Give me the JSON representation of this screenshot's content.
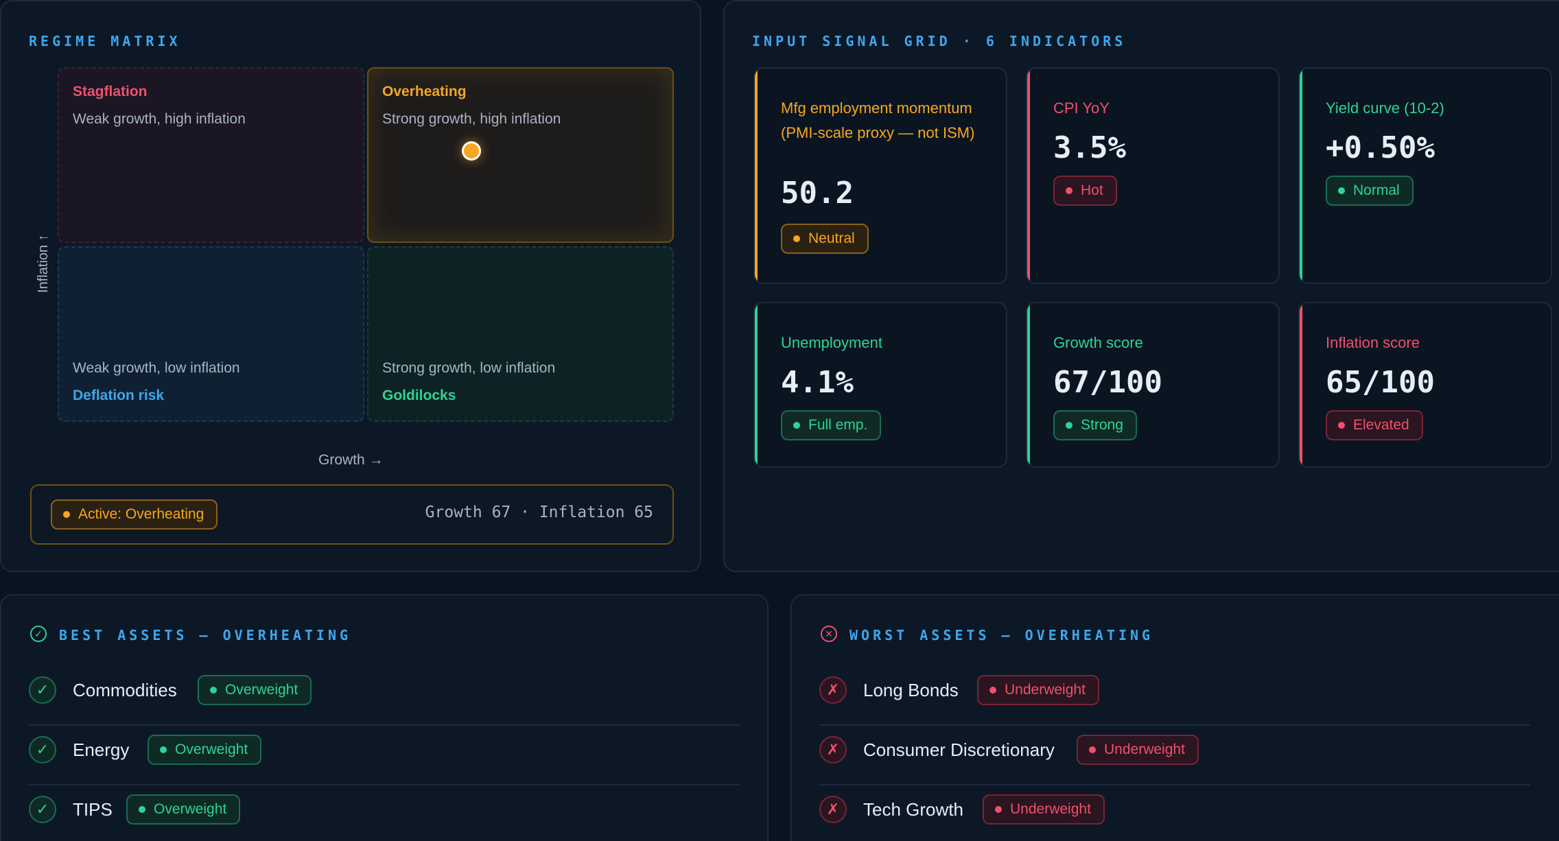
{
  "matrix": {
    "title": "REGIME MATRIX",
    "quadrants": {
      "stagflation": {
        "name": "Stagflation",
        "desc": "Weak growth, high inflation",
        "color": "#f0506e"
      },
      "overheating": {
        "name": "Overheating",
        "desc": "Strong growth, high inflation",
        "color": "#f5a623"
      },
      "deflation": {
        "name": "Deflation risk",
        "desc": "Weak growth, low inflation",
        "color": "#3fa6ec"
      },
      "goldilocks": {
        "name": "Goldilocks",
        "desc": "Strong growth, low inflation",
        "color": "#2fd394"
      }
    },
    "y_axis_label": "Inflation ↑",
    "x_axis_label": "Growth →",
    "position": {
      "growth": 67,
      "inflation": 65
    },
    "active_badge": "Active: Overheating",
    "active_readout": "Growth 67 · Inflation 65"
  },
  "signals": {
    "title": "INPUT SIGNAL GRID · 6 INDICATORS",
    "cards": [
      {
        "label": "Mfg employment momentum (PMI-scale proxy — not ISM)",
        "value": "50.2",
        "status": "Neutral",
        "tone": "amber",
        "color": "#f5a623"
      },
      {
        "label": "CPI YoY",
        "value": "3.5%",
        "status": "Hot",
        "tone": "red",
        "color": "#f0506e"
      },
      {
        "label": "Yield curve (10-2)",
        "value": "+0.50%",
        "status": "Normal",
        "tone": "green",
        "color": "#2fd394"
      },
      {
        "label": "Unemployment",
        "value": "4.1%",
        "status": "Full emp.",
        "tone": "green",
        "color": "#2fd394"
      },
      {
        "label": "Growth score",
        "value": "67/100",
        "status": "Strong",
        "tone": "green",
        "color": "#2fd394"
      },
      {
        "label": "Inflation score",
        "value": "65/100",
        "status": "Elevated",
        "tone": "red",
        "color": "#f0506e"
      }
    ]
  },
  "best": {
    "title": "BEST ASSETS — OVERHEATING",
    "icon": "check-circle-icon",
    "items": [
      {
        "name": "Commodities",
        "status": "Overweight"
      },
      {
        "name": "Energy",
        "status": "Overweight"
      },
      {
        "name": "TIPS",
        "status": "Overweight"
      }
    ]
  },
  "worst": {
    "title": "WORST ASSETS — OVERHEATING",
    "icon": "x-circle-icon",
    "items": [
      {
        "name": "Long Bonds",
        "status": "Underweight"
      },
      {
        "name": "Consumer Discretionary",
        "status": "Underweight"
      },
      {
        "name": "Tech Growth",
        "status": "Underweight"
      }
    ]
  }
}
